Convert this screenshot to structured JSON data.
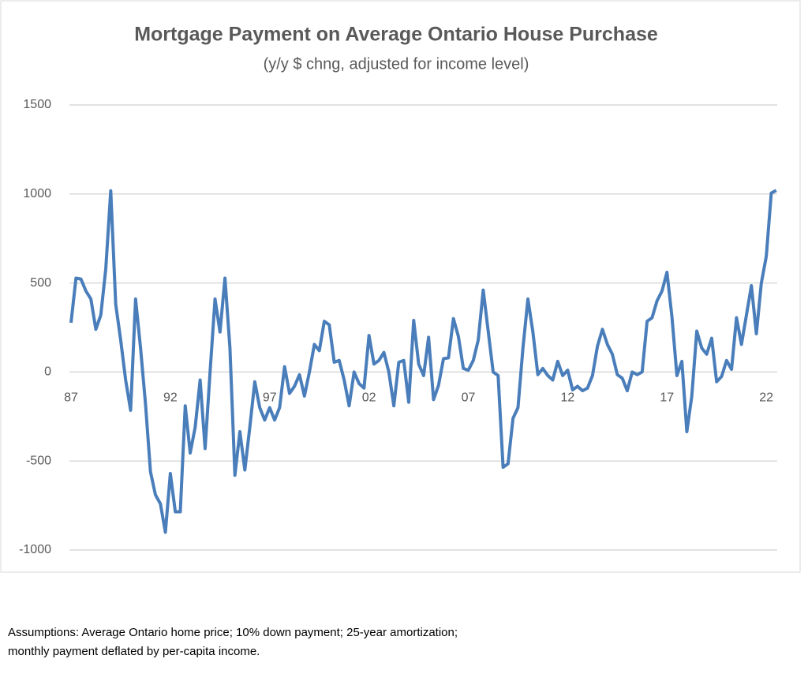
{
  "chart_data": {
    "type": "line",
    "title": "Mortgage Payment on Average Ontario House  Purchase",
    "subtitle": "(y/y $ chng, adjusted for income level)",
    "categories": [
      "87",
      null,
      null,
      null,
      null,
      null,
      null,
      null,
      null,
      null,
      null,
      null,
      null,
      null,
      null,
      null,
      null,
      null,
      null,
      null,
      "92",
      null,
      null,
      null,
      null,
      null,
      null,
      null,
      null,
      null,
      null,
      null,
      null,
      null,
      null,
      null,
      null,
      null,
      null,
      null,
      "97",
      null,
      null,
      null,
      null,
      null,
      null,
      null,
      null,
      null,
      null,
      null,
      null,
      null,
      null,
      null,
      null,
      null,
      null,
      null,
      "02",
      null,
      null,
      null,
      null,
      null,
      null,
      null,
      null,
      null,
      null,
      null,
      null,
      null,
      null,
      null,
      null,
      null,
      null,
      null,
      "07",
      null,
      null,
      null,
      null,
      null,
      null,
      null,
      null,
      null,
      null,
      null,
      null,
      null,
      null,
      null,
      null,
      null,
      null,
      null,
      "12",
      null,
      null,
      null,
      null,
      null,
      null,
      null,
      null,
      null,
      null,
      null,
      null,
      null,
      null,
      null,
      null,
      null,
      null,
      null,
      "17",
      null,
      null,
      null,
      null,
      null,
      null,
      null,
      null,
      null,
      null,
      null,
      null,
      null,
      null,
      null,
      null,
      null,
      null,
      null,
      "22",
      null,
      null
    ],
    "values": [
      277,
      527,
      522,
      455,
      410,
      240,
      320,
      580,
      1018,
      380,
      180,
      -45,
      -215,
      410,
      135,
      -180,
      -560,
      -690,
      -740,
      -900,
      -570,
      -785,
      -785,
      -190,
      -455,
      -310,
      -45,
      -430,
      0,
      410,
      225,
      527,
      135,
      -580,
      -335,
      -550,
      -310,
      -55,
      -200,
      -270,
      -200,
      -270,
      -200,
      30,
      -120,
      -80,
      -15,
      -135,
      0,
      155,
      120,
      285,
      265,
      55,
      65,
      -45,
      -190,
      0,
      -65,
      -90,
      205,
      45,
      65,
      110,
      0,
      -190,
      55,
      65,
      -170,
      290,
      45,
      -20,
      195,
      -155,
      -75,
      75,
      80,
      300,
      200,
      20,
      10,
      65,
      180,
      460,
      230,
      0,
      -20,
      -535,
      -515,
      -260,
      -200,
      135,
      410,
      225,
      -15,
      20,
      -20,
      -45,
      60,
      -20,
      10,
      -100,
      -80,
      -105,
      -90,
      -20,
      145,
      240,
      155,
      100,
      -15,
      -35,
      -105,
      0,
      -15,
      0,
      285,
      305,
      400,
      455,
      560,
      310,
      -20,
      60,
      -335,
      -135,
      230,
      135,
      100,
      190,
      -55,
      -25,
      65,
      15,
      305,
      155,
      320,
      485,
      215,
      500,
      650,
      1005,
      1020
    ],
    "color": "#4a7ebb",
    "ylim": [
      -1000,
      1500
    ],
    "yticks": [
      -1000,
      -500,
      0,
      500,
      1000,
      1500
    ],
    "grid": true,
    "note": [
      "Assumptions: Average Ontario home price; 10% down payment; 25-year amortization;",
      "monthly payment deflated by per-capita income."
    ]
  }
}
